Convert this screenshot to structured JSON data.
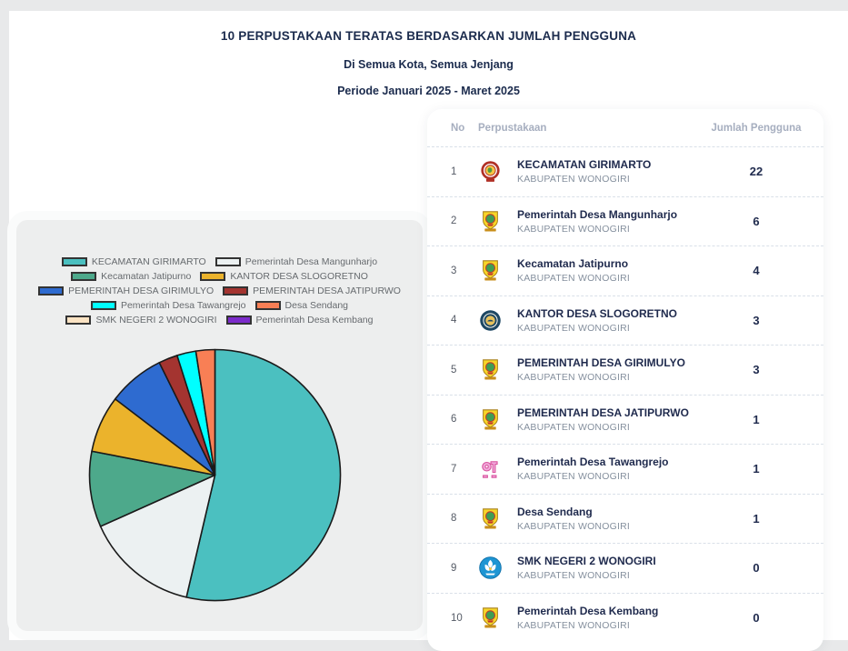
{
  "header": {
    "title": "10 PERPUSTAKAAN TERATAS BERDASARKAN JUMLAH PENGGUNA",
    "subtitle": "Di Semua Kota, Semua Jenjang",
    "period": "Periode Januari 2025 - Maret 2025"
  },
  "chart_data": {
    "type": "pie",
    "title": "10 Perpustakaan Teratas Berdasarkan Jumlah Pengguna",
    "labels": [
      "KECAMATAN GIRIMARTO",
      "Pemerintah Desa Mangunharjo",
      "Kecamatan Jatipurno",
      "KANTOR DESA SLOGORETNO",
      "PEMERINTAH DESA GIRIMULYO",
      "PEMERINTAH DESA JATIPURWO",
      "Pemerintah Desa Tawangrejo",
      "Desa Sendang",
      "SMK NEGERI 2 WONOGIRI",
      "Pemerintah Desa Kembang"
    ],
    "values": [
      22,
      6,
      4,
      3,
      3,
      1,
      1,
      1,
      0,
      0
    ],
    "colors": [
      "#4BC0C0",
      "#ECF1F2",
      "#4DA98B",
      "#EBB32C",
      "#2E6BD0",
      "#A43430",
      "#00FFFF",
      "#F87F55",
      "#FBE3C3",
      "#7C2BCB"
    ],
    "slice_border_color": "#1A1A1A",
    "legend_position": "top",
    "start_angle": "top",
    "direction": "clockwise"
  },
  "table": {
    "columns": {
      "no": "No",
      "library": "Perpustakaan",
      "users": "Jumlah Pengguna"
    },
    "rows": [
      {
        "no": "1",
        "name": "KECAMATAN GIRIMARTO",
        "region": "KABUPATEN WONOGIRI",
        "users": "22",
        "logo": "girimarto-seal-icon"
      },
      {
        "no": "2",
        "name": "Pemerintah Desa Mangunharjo",
        "region": "KABUPATEN WONOGIRI",
        "users": "6",
        "logo": "wonogiri-shield-icon"
      },
      {
        "no": "3",
        "name": "Kecamatan Jatipurno",
        "region": "KABUPATEN WONOGIRI",
        "users": "4",
        "logo": "wonogiri-shield-icon"
      },
      {
        "no": "4",
        "name": "KANTOR DESA SLOGORETNO",
        "region": "KABUPATEN WONOGIRI",
        "users": "3",
        "logo": "slogoretno-seal-icon"
      },
      {
        "no": "5",
        "name": "PEMERINTAH DESA GIRIMULYO",
        "region": "KABUPATEN WONOGIRI",
        "users": "3",
        "logo": "wonogiri-shield-icon"
      },
      {
        "no": "6",
        "name": "PEMERINTAH DESA JATIPURWO",
        "region": "KABUPATEN WONOGIRI",
        "users": "1",
        "logo": "wonogiri-shield-icon"
      },
      {
        "no": "7",
        "name": "Pemerintah Desa Tawangrejo",
        "region": "KABUPATEN WONOGIRI",
        "users": "1",
        "logo": "tawangrejo-mark-icon"
      },
      {
        "no": "8",
        "name": "Desa Sendang",
        "region": "KABUPATEN WONOGIRI",
        "users": "1",
        "logo": "wonogiri-shield-icon"
      },
      {
        "no": "9",
        "name": "SMK NEGERI 2 WONOGIRI",
        "region": "KABUPATEN WONOGIRI",
        "users": "0",
        "logo": "smk-emblem-icon"
      },
      {
        "no": "10",
        "name": "Pemerintah Desa Kembang",
        "region": "KABUPATEN WONOGIRI",
        "users": "0",
        "logo": "wonogiri-shield-icon"
      }
    ]
  },
  "colors": {
    "title_text": "#1B2B4D",
    "table_header_text": "#A6AEBF",
    "row_name_text": "#1F2A4D",
    "row_region_text": "#85909E",
    "panel_background": "#EDEEEE",
    "page_background": "#E8E9EA",
    "dashed_divider": "#D9E0E8"
  }
}
